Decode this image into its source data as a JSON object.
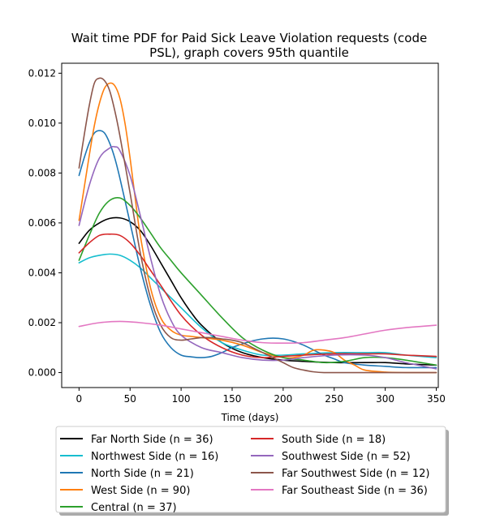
{
  "chart_data": {
    "type": "line",
    "title_line1": "Wait time PDF for Paid Sick Leave Violation  requests (code",
    "title_line2": "PSL), graph covers 95th quantile",
    "xlabel": "Time (days)",
    "ylabel": "",
    "xlim": [
      -17,
      352
    ],
    "ylim": [
      -0.0006,
      0.0124
    ],
    "xticks": [
      0,
      50,
      100,
      150,
      200,
      250,
      300,
      350
    ],
    "yticks": [
      0.0,
      0.002,
      0.004,
      0.006,
      0.008,
      0.01,
      0.012
    ],
    "ytick_labels": [
      "0.000",
      "0.002",
      "0.004",
      "0.006",
      "0.008",
      "0.010",
      "0.012"
    ],
    "grid": false,
    "legend_placement": "below plot, two columns",
    "series": [
      {
        "name": "Far North Side (n = 36)",
        "color": "#000000",
        "x": [
          0,
          10,
          20,
          30,
          40,
          50,
          60,
          70,
          80,
          90,
          100,
          110,
          120,
          140,
          160,
          180,
          200,
          220,
          250,
          280,
          300,
          320,
          350
        ],
        "y": [
          0.00518,
          0.0057,
          0.006,
          0.00618,
          0.0062,
          0.00605,
          0.0057,
          0.0051,
          0.0044,
          0.0037,
          0.003,
          0.0024,
          0.0019,
          0.0012,
          0.0008,
          0.0006,
          0.0005,
          0.00045,
          0.0004,
          0.0004,
          0.0004,
          0.00035,
          0.0003
        ]
      },
      {
        "name": "Northwest Side (n = 16)",
        "color": "#17becf",
        "x": [
          0,
          10,
          20,
          30,
          40,
          50,
          60,
          70,
          80,
          100,
          120,
          140,
          160,
          180,
          200,
          220,
          250,
          280,
          300,
          320,
          350
        ],
        "y": [
          0.0044,
          0.0046,
          0.0047,
          0.00475,
          0.0047,
          0.0045,
          0.0042,
          0.0038,
          0.0034,
          0.0026,
          0.0018,
          0.0012,
          0.0009,
          0.0007,
          0.0007,
          0.00075,
          0.0008,
          0.0008,
          0.0008,
          0.0007,
          0.0006
        ]
      },
      {
        "name": "North Side (n = 21)",
        "color": "#1f77b4",
        "x": [
          0,
          5,
          10,
          15,
          20,
          25,
          30,
          35,
          40,
          50,
          60,
          70,
          80,
          90,
          100,
          110,
          120,
          130,
          140,
          150,
          160,
          170,
          180,
          190,
          200,
          210,
          220,
          230,
          240,
          250,
          260,
          280,
          300,
          320,
          350
        ],
        "y": [
          0.0079,
          0.0086,
          0.0092,
          0.0096,
          0.0097,
          0.0096,
          0.0092,
          0.0086,
          0.0078,
          0.006,
          0.0042,
          0.0027,
          0.0016,
          0.001,
          0.0007,
          0.00063,
          0.0006,
          0.00065,
          0.0008,
          0.001,
          0.00115,
          0.00127,
          0.00135,
          0.00138,
          0.00135,
          0.00125,
          0.0011,
          0.0009,
          0.0007,
          0.00055,
          0.0004,
          0.0003,
          0.00025,
          0.0002,
          0.0002
        ]
      },
      {
        "name": "West Side (n = 90)",
        "color": "#ff7f0e",
        "x": [
          0,
          5,
          10,
          15,
          20,
          25,
          30,
          35,
          40,
          45,
          50,
          55,
          60,
          70,
          80,
          90,
          100,
          110,
          120,
          140,
          160,
          180,
          200,
          210,
          220,
          230,
          240,
          250,
          260,
          270,
          280,
          300,
          320,
          350
        ],
        "y": [
          0.0061,
          0.0074,
          0.0087,
          0.0099,
          0.0108,
          0.0114,
          0.0116,
          0.0115,
          0.011,
          0.01,
          0.0086,
          0.007,
          0.0055,
          0.0034,
          0.0022,
          0.0017,
          0.0015,
          0.00145,
          0.0014,
          0.0013,
          0.0011,
          0.0008,
          0.0006,
          0.0006,
          0.0007,
          0.0009,
          0.0009,
          0.0008,
          0.0005,
          0.0003,
          0.0001,
          2e-05,
          0.0,
          0.0
        ]
      },
      {
        "name": "Central (n = 37)",
        "color": "#2ca02c",
        "x": [
          0,
          10,
          20,
          30,
          40,
          50,
          60,
          70,
          80,
          90,
          100,
          120,
          140,
          160,
          180,
          200,
          220,
          240,
          260,
          280,
          300,
          320,
          350
        ],
        "y": [
          0.0045,
          0.0055,
          0.0064,
          0.0069,
          0.007,
          0.0067,
          0.0062,
          0.0056,
          0.005,
          0.0045,
          0.004,
          0.0031,
          0.0022,
          0.0014,
          0.0009,
          0.0006,
          0.0005,
          0.0004,
          0.00045,
          0.0006,
          0.0006,
          0.0005,
          0.0003
        ]
      },
      {
        "name": "South Side (n = 18)",
        "color": "#d62728",
        "x": [
          0,
          10,
          20,
          30,
          40,
          50,
          60,
          70,
          80,
          100,
          120,
          140,
          160,
          180,
          200,
          220,
          250,
          280,
          300,
          320,
          350
        ],
        "y": [
          0.0048,
          0.0052,
          0.0055,
          0.00555,
          0.0055,
          0.0052,
          0.0047,
          0.0041,
          0.0035,
          0.0023,
          0.0015,
          0.001,
          0.0007,
          0.0006,
          0.00065,
          0.0007,
          0.00075,
          0.00075,
          0.00075,
          0.0007,
          0.00065
        ]
      },
      {
        "name": "Southwest Side (n = 52)",
        "color": "#9467bd",
        "x": [
          0,
          10,
          20,
          30,
          35,
          40,
          50,
          60,
          70,
          80,
          90,
          100,
          120,
          140,
          160,
          180,
          200,
          220,
          250,
          280,
          300,
          320,
          350
        ],
        "y": [
          0.0059,
          0.0075,
          0.0086,
          0.009,
          0.00905,
          0.0089,
          0.0079,
          0.0063,
          0.0046,
          0.0031,
          0.0021,
          0.0015,
          0.001,
          0.0008,
          0.0006,
          0.0005,
          0.0005,
          0.0006,
          0.0007,
          0.0007,
          0.0006,
          0.0004,
          0.00015
        ]
      },
      {
        "name": "Far Southwest Side (n = 12)",
        "color": "#8c564b",
        "x": [
          0,
          5,
          10,
          15,
          20,
          25,
          30,
          35,
          40,
          50,
          60,
          70,
          80,
          90,
          100,
          110,
          120,
          130,
          140,
          150,
          160,
          170,
          180,
          190,
          200,
          210,
          220,
          230,
          240,
          260,
          280,
          300,
          320,
          350
        ],
        "y": [
          0.0082,
          0.0095,
          0.0107,
          0.0116,
          0.0118,
          0.0117,
          0.0113,
          0.0105,
          0.0095,
          0.0072,
          0.0048,
          0.003,
          0.0019,
          0.0014,
          0.0013,
          0.00135,
          0.0014,
          0.0014,
          0.00135,
          0.0013,
          0.0012,
          0.001,
          0.0008,
          0.0006,
          0.0004,
          0.0002,
          0.0001,
          3e-05,
          0.0,
          0.0,
          0.0,
          0.0,
          0.0,
          0.0
        ]
      },
      {
        "name": "Far Southeast Side (n = 36)",
        "color": "#e377c2",
        "x": [
          0,
          20,
          40,
          60,
          80,
          100,
          120,
          140,
          160,
          180,
          200,
          220,
          240,
          260,
          280,
          300,
          320,
          350
        ],
        "y": [
          0.00185,
          0.002,
          0.00205,
          0.002,
          0.0019,
          0.00175,
          0.0016,
          0.00145,
          0.0013,
          0.0012,
          0.00118,
          0.0012,
          0.0013,
          0.0014,
          0.00155,
          0.0017,
          0.0018,
          0.0019
        ]
      }
    ]
  }
}
